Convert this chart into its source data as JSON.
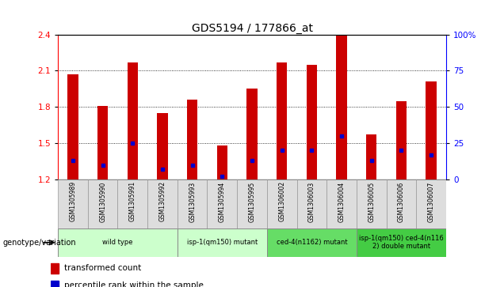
{
  "title": "GDS5194 / 177866_at",
  "samples": [
    "GSM1305989",
    "GSM1305990",
    "GSM1305991",
    "GSM1305992",
    "GSM1305993",
    "GSM1305994",
    "GSM1305995",
    "GSM1306002",
    "GSM1306003",
    "GSM1306004",
    "GSM1306005",
    "GSM1306006",
    "GSM1306007"
  ],
  "transformed_count": [
    2.07,
    1.81,
    2.17,
    1.75,
    1.86,
    1.48,
    1.95,
    2.17,
    2.15,
    2.39,
    1.57,
    1.85,
    2.01
  ],
  "percentile_rank": [
    13,
    10,
    25,
    7,
    10,
    2,
    13,
    20,
    20,
    30,
    13,
    20,
    17
  ],
  "ymin": 1.2,
  "ymax": 2.4,
  "yticks_left": [
    1.2,
    1.5,
    1.8,
    2.1,
    2.4
  ],
  "yticks_right": [
    0,
    25,
    50,
    75,
    100
  ],
  "bar_color": "#cc0000",
  "dot_color": "#0000cc",
  "groups": [
    {
      "label": "wild type",
      "indices": [
        0,
        1,
        2,
        3
      ],
      "color": "#ccffcc"
    },
    {
      "label": "isp-1(qm150) mutant",
      "indices": [
        4,
        5,
        6
      ],
      "color": "#ccffcc"
    },
    {
      "label": "ced-4(n1162) mutant",
      "indices": [
        7,
        8,
        9
      ],
      "color": "#66dd66"
    },
    {
      "label": "isp-1(qm150) ced-4(n116\n2) double mutant",
      "indices": [
        10,
        11,
        12
      ],
      "color": "#44cc44"
    }
  ],
  "legend_red_label": "transformed count",
  "legend_blue_label": "percentile rank within the sample",
  "genotype_label": "genotype/variation",
  "bar_width": 0.35
}
